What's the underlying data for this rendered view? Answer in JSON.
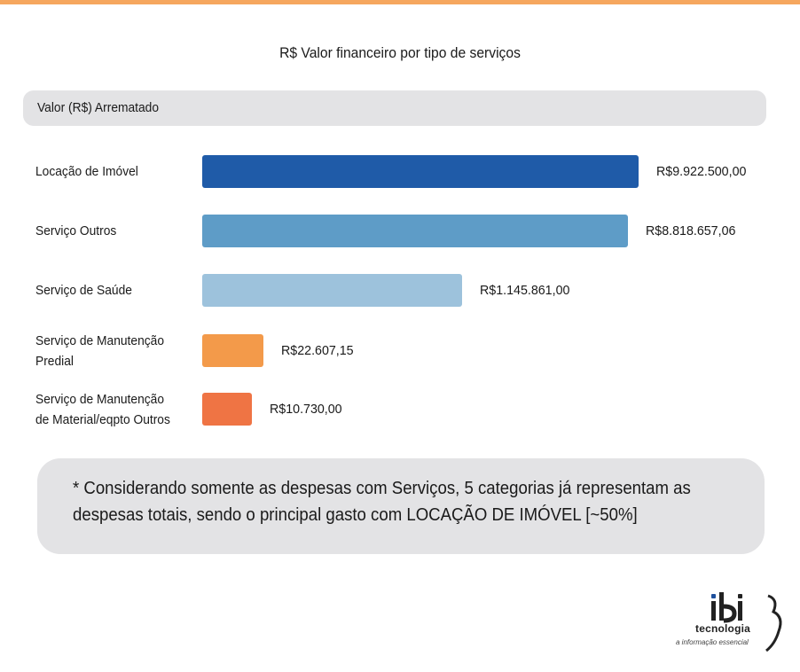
{
  "colors": {
    "top_bar": "#f6a75e",
    "panel_bg": "#e3e3e5",
    "logo_accent": "#1e4f9c"
  },
  "chart_data": {
    "type": "bar",
    "orientation": "horizontal",
    "title": "R$ Valor financeiro por tipo de serviços",
    "metric_label": "Valor (R$) Arrematado",
    "xlabel": "",
    "ylabel": "",
    "grid": false,
    "legend": "none",
    "categories": [
      "Locação de Imóvel",
      "Serviço Outros",
      "Serviço de Saúde",
      "Serviço de Manutenção\nPredial",
      "Serviço de Manutenção\nde Material/eqpto Outros"
    ],
    "values": [
      9922500.0,
      8818657.06,
      1145861.0,
      22607.15,
      10730.0
    ],
    "value_labels": [
      "R$9.922.500,00",
      "R$8.818.657,06",
      "R$1.145.861,00",
      "R$22.607,15",
      "R$10.730,00"
    ],
    "colors": [
      "#1f5ba8",
      "#5e9cc7",
      "#9dc2dc",
      "#f39a4a",
      "#ef7444"
    ],
    "scale": "non-linear (bars not proportional to values)"
  },
  "note": "* Considerando somente as despesas com Serviços, 5 categorias já representam as despesas totais, sendo o principal gasto com LOCAÇÃO DE IMÓVEL [~50%]",
  "logo": {
    "brand_mark": "ibi",
    "name": "tecnologia",
    "tagline": "a informação essencial"
  }
}
